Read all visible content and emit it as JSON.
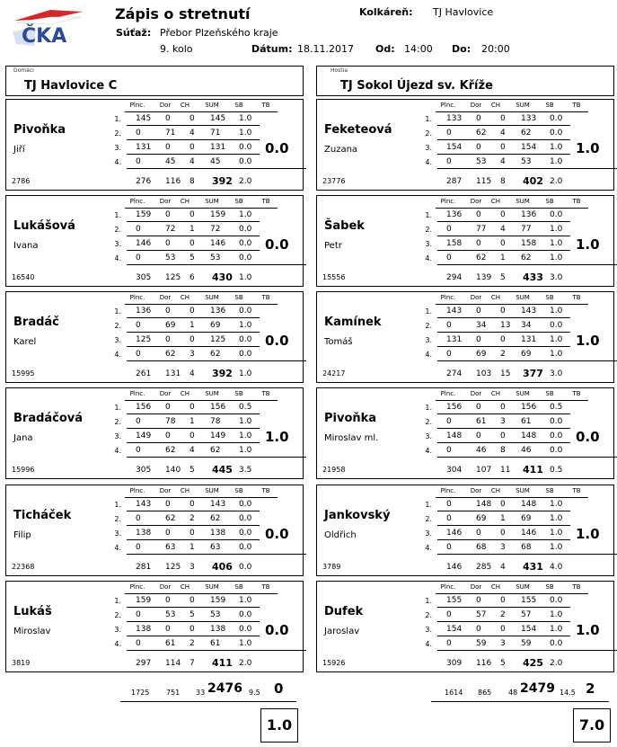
{
  "header": {
    "title": "Zápis o stretnutí",
    "kolkaren_label": "Kolkáreň:",
    "kolkaren": "TJ Havlovice",
    "sutaz_label": "Súťaž:",
    "sutaz": "Přebor Plzeňského kraje",
    "kolo": "9. kolo",
    "datum_label": "Dátum:",
    "datum": "18.11.2017",
    "od_label": "Od:",
    "od": "14:00",
    "do_label": "Do:",
    "do": "20:00",
    "logo_text": "ČKA"
  },
  "columns": [
    "Plnc.",
    "Dor",
    "CH",
    "SUM",
    "SB",
    "TB"
  ],
  "row_labels": [
    "1.",
    "2.",
    "3.",
    "4."
  ],
  "home": {
    "role": "Domáci",
    "team": "TJ Havlovice C",
    "players": [
      {
        "surname": "Pivoňka",
        "given": "Jiří",
        "reg": "2786",
        "rows": [
          [
            "145",
            "0",
            "0",
            "145",
            "1.0"
          ],
          [
            "0",
            "71",
            "4",
            "71",
            "1.0"
          ],
          [
            "131",
            "0",
            "0",
            "131",
            "0.0"
          ],
          [
            "0",
            "45",
            "4",
            "45",
            "0.0"
          ]
        ],
        "total": [
          "276",
          "116",
          "8",
          "392",
          "2.0"
        ],
        "points": "0.0"
      },
      {
        "surname": "Lukášová",
        "given": "Ivana",
        "reg": "16540",
        "rows": [
          [
            "159",
            "0",
            "0",
            "159",
            "1.0"
          ],
          [
            "0",
            "72",
            "1",
            "72",
            "0.0"
          ],
          [
            "146",
            "0",
            "0",
            "146",
            "0.0"
          ],
          [
            "0",
            "53",
            "5",
            "53",
            "0.0"
          ]
        ],
        "total": [
          "305",
          "125",
          "6",
          "430",
          "1.0"
        ],
        "points": "0.0"
      },
      {
        "surname": "Bradáč",
        "given": "Karel",
        "reg": "15995",
        "rows": [
          [
            "136",
            "0",
            "0",
            "136",
            "0.0"
          ],
          [
            "0",
            "69",
            "1",
            "69",
            "1.0"
          ],
          [
            "125",
            "0",
            "0",
            "125",
            "0.0"
          ],
          [
            "0",
            "62",
            "3",
            "62",
            "0.0"
          ]
        ],
        "total": [
          "261",
          "131",
          "4",
          "392",
          "1.0"
        ],
        "points": "0.0"
      },
      {
        "surname": "Bradáčová",
        "given": "Jana",
        "reg": "15996",
        "rows": [
          [
            "156",
            "0",
            "0",
            "156",
            "0.5"
          ],
          [
            "0",
            "78",
            "1",
            "78",
            "1.0"
          ],
          [
            "149",
            "0",
            "0",
            "149",
            "1.0"
          ],
          [
            "0",
            "62",
            "4",
            "62",
            "1.0"
          ]
        ],
        "total": [
          "305",
          "140",
          "5",
          "445",
          "3.5"
        ],
        "points": "1.0"
      },
      {
        "surname": "Ticháček",
        "given": "Filip",
        "reg": "22368",
        "rows": [
          [
            "143",
            "0",
            "0",
            "143",
            "0.0"
          ],
          [
            "0",
            "62",
            "2",
            "62",
            "0.0"
          ],
          [
            "138",
            "0",
            "0",
            "138",
            "0.0"
          ],
          [
            "0",
            "63",
            "1",
            "63",
            "0.0"
          ]
        ],
        "total": [
          "281",
          "125",
          "3",
          "406",
          "0.0"
        ],
        "points": "0.0"
      },
      {
        "surname": "Lukáš",
        "given": "Miroslav",
        "reg": "3819",
        "rows": [
          [
            "159",
            "0",
            "0",
            "159",
            "1.0"
          ],
          [
            "0",
            "53",
            "5",
            "53",
            "0.0"
          ],
          [
            "138",
            "0",
            "0",
            "138",
            "0.0"
          ],
          [
            "0",
            "61",
            "2",
            "61",
            "1.0"
          ]
        ],
        "total": [
          "297",
          "114",
          "7",
          "411",
          "2.0"
        ],
        "points": "0.0"
      }
    ],
    "totals": {
      "plnc": "1725",
      "dor": "751",
      "ch": "33",
      "sum": "2476",
      "sb": "9.5",
      "mp": "0"
    },
    "final": "1.0"
  },
  "away": {
    "role": "Hostia",
    "team": "TJ Sokol Újezd sv. Kříže",
    "players": [
      {
        "surname": "Feketeová",
        "given": "Zuzana",
        "reg": "23776",
        "rows": [
          [
            "133",
            "0",
            "0",
            "133",
            "0.0"
          ],
          [
            "0",
            "62",
            "4",
            "62",
            "0.0"
          ],
          [
            "154",
            "0",
            "0",
            "154",
            "1.0"
          ],
          [
            "0",
            "53",
            "4",
            "53",
            "1.0"
          ]
        ],
        "total": [
          "287",
          "115",
          "8",
          "402",
          "2.0"
        ],
        "points": "1.0"
      },
      {
        "surname": "Šabek",
        "given": "Petr",
        "reg": "15556",
        "rows": [
          [
            "136",
            "0",
            "0",
            "136",
            "0.0"
          ],
          [
            "0",
            "77",
            "4",
            "77",
            "1.0"
          ],
          [
            "158",
            "0",
            "0",
            "158",
            "1.0"
          ],
          [
            "0",
            "62",
            "1",
            "62",
            "1.0"
          ]
        ],
        "total": [
          "294",
          "139",
          "5",
          "433",
          "3.0"
        ],
        "points": "1.0"
      },
      {
        "surname": "Kamínek",
        "given": "Tomáš",
        "reg": "24217",
        "rows": [
          [
            "143",
            "0",
            "0",
            "143",
            "1.0"
          ],
          [
            "0",
            "34",
            "13",
            "34",
            "0.0"
          ],
          [
            "131",
            "0",
            "0",
            "131",
            "1.0"
          ],
          [
            "0",
            "69",
            "2",
            "69",
            "1.0"
          ]
        ],
        "total": [
          "274",
          "103",
          "15",
          "377",
          "3.0"
        ],
        "points": "1.0"
      },
      {
        "surname": "Pivoňka",
        "given": "Miroslav ml.",
        "reg": "21958",
        "rows": [
          [
            "156",
            "0",
            "0",
            "156",
            "0.5"
          ],
          [
            "0",
            "61",
            "3",
            "61",
            "0.0"
          ],
          [
            "148",
            "0",
            "0",
            "148",
            "0.0"
          ],
          [
            "0",
            "46",
            "8",
            "46",
            "0.0"
          ]
        ],
        "total": [
          "304",
          "107",
          "11",
          "411",
          "0.5"
        ],
        "points": "0.0"
      },
      {
        "surname": "Jankovský",
        "given": "Oldřich",
        "reg": "3789",
        "rows": [
          [
            "0",
            "148",
            "0",
            "148",
            "1.0"
          ],
          [
            "0",
            "69",
            "1",
            "69",
            "1.0"
          ],
          [
            "146",
            "0",
            "0",
            "146",
            "1.0"
          ],
          [
            "0",
            "68",
            "3",
            "68",
            "1.0"
          ]
        ],
        "total": [
          "146",
          "285",
          "4",
          "431",
          "4.0"
        ],
        "points": "1.0"
      },
      {
        "surname": "Dufek",
        "given": "Jaroslav",
        "reg": "15926",
        "rows": [
          [
            "155",
            "0",
            "0",
            "155",
            "0.0"
          ],
          [
            "0",
            "57",
            "2",
            "57",
            "1.0"
          ],
          [
            "154",
            "0",
            "0",
            "154",
            "1.0"
          ],
          [
            "0",
            "59",
            "3",
            "59",
            "0.0"
          ]
        ],
        "total": [
          "309",
          "116",
          "5",
          "425",
          "2.0"
        ],
        "points": "1.0"
      }
    ],
    "totals": {
      "plnc": "1614",
      "dor": "865",
      "ch": "48",
      "sum": "2479",
      "sb": "14.5",
      "mp": "2"
    },
    "final": "7.0"
  },
  "colors": {
    "logo_blue": "#2b4a9b",
    "logo_red": "#d22a2a"
  }
}
